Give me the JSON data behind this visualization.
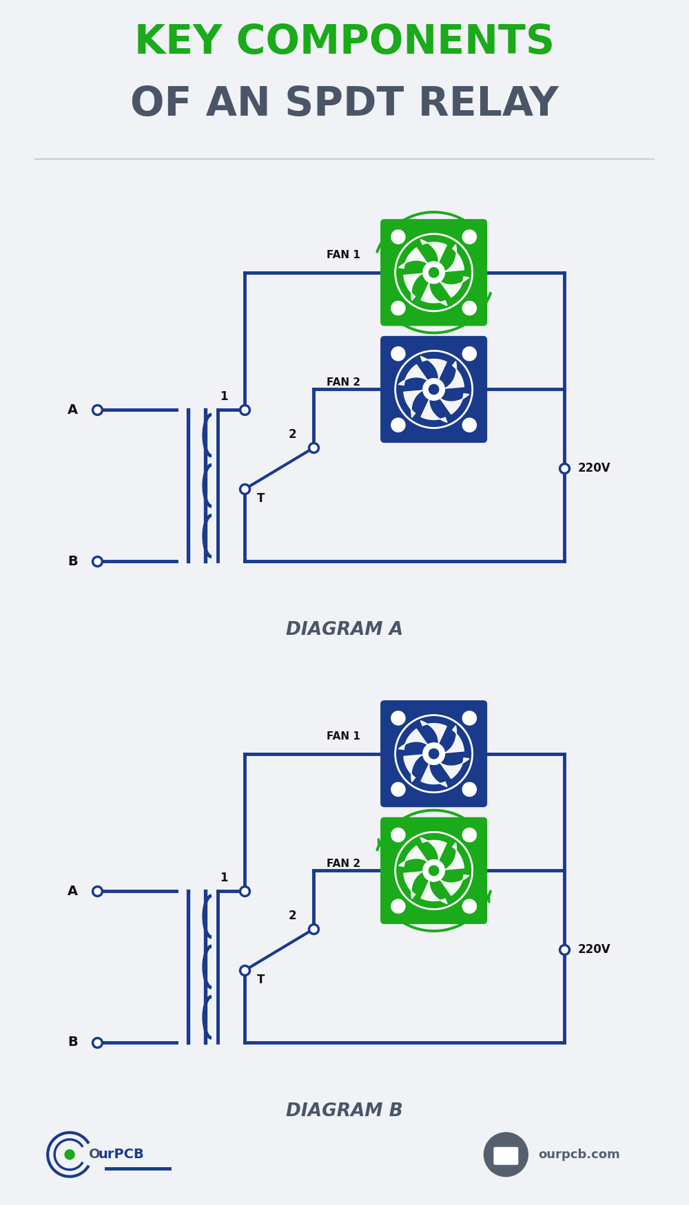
{
  "title_line1": "KEY COMPONENTS",
  "title_line2": "OF AN SPDT RELAY",
  "title_color1": "#1aaa1a",
  "title_color2": "#4a5568",
  "diagram_a_label": "DIAGRAM A",
  "diagram_b_label": "DIAGRAM B",
  "circuit_color": "#1a3a8c",
  "line_width": 3.5,
  "bg_color": "#f0f2f5",
  "label_color": "#111111",
  "green_color": "#1aaa1a",
  "blue_color": "#1a3a8c",
  "fan1_label": "FAN 1",
  "fan2_label": "FAN 2",
  "voltage_label": "220V",
  "node_a": "A",
  "node_b": "B",
  "node_1": "1",
  "node_2": "2",
  "node_t": "T"
}
